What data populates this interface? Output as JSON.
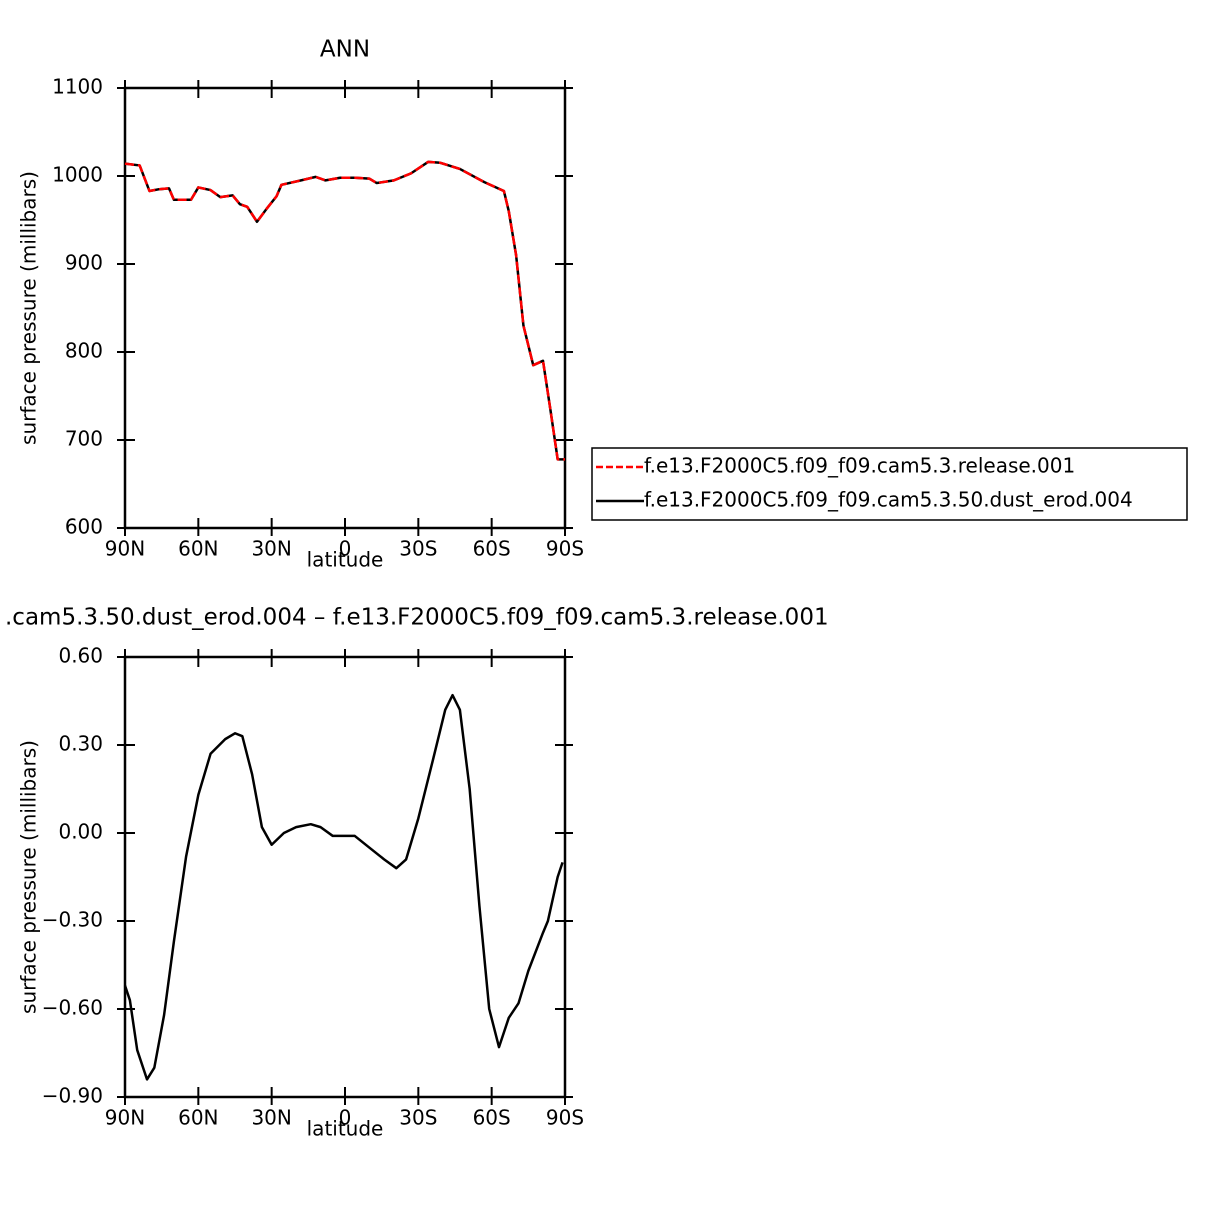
{
  "chart_data": [
    {
      "type": "line",
      "title": "ANN",
      "xlabel": "latitude",
      "ylabel": "surface pressure (millibars)",
      "xlim": [
        90,
        -90
      ],
      "ylim": [
        600,
        1100
      ],
      "xticks": [
        {
          "value": 90,
          "label": "90N"
        },
        {
          "value": 60,
          "label": "60N"
        },
        {
          "value": 30,
          "label": "30N"
        },
        0,
        {
          "value": -30,
          "label": "30S"
        },
        {
          "value": -60,
          "label": "60S"
        },
        {
          "value": -90,
          "label": "90S"
        }
      ],
      "yticks": [
        600,
        700,
        800,
        900,
        1000,
        1100
      ],
      "x": [
        90,
        84,
        80,
        76,
        72,
        70,
        63,
        60,
        55,
        51,
        46,
        43,
        40,
        36,
        32,
        28,
        26,
        18,
        12,
        8,
        2,
        -4,
        -10,
        -13,
        -20,
        -27,
        -34,
        -39,
        -47,
        -57,
        -65,
        -67,
        -70,
        -73,
        -77,
        -81,
        -84,
        -87,
        -90
      ],
      "series": [
        {
          "name": "f.e13.F2000C5.f09_f09.cam5.3.release.001",
          "color": "#ff0000",
          "dash": true,
          "values": [
            1014,
            1012,
            983,
            985,
            986,
            973,
            973,
            987,
            984,
            976,
            978,
            968,
            965,
            948,
            963,
            977,
            990,
            995,
            999,
            995,
            998,
            998,
            997,
            992,
            995,
            1003,
            1016,
            1015,
            1008,
            993,
            983,
            960,
            910,
            830,
            785,
            790,
            735,
            678,
            678
          ]
        },
        {
          "name": "f.e13.F2000C5.f09_f09.cam5.3.50.dust_erod.004",
          "color": "#000000",
          "dash": false,
          "values": [
            1014,
            1012,
            983,
            985,
            986,
            973,
            973,
            987,
            984,
            976,
            978,
            968,
            965,
            948,
            963,
            977,
            990,
            995,
            999,
            995,
            998,
            998,
            997,
            992,
            995,
            1003,
            1016,
            1015,
            1008,
            993,
            983,
            960,
            910,
            830,
            785,
            790,
            735,
            678,
            678
          ]
        }
      ]
    },
    {
      "type": "line",
      "title": ".cam5.3.50.dust_erod.004 – f.e13.F2000C5.f09_f09.cam5.3.release.001",
      "xlabel": "latitude",
      "ylabel": "surface pressure (millibars)",
      "xlim": [
        90,
        -90
      ],
      "ylim": [
        -0.9,
        0.6
      ],
      "xticks": [
        {
          "value": 90,
          "label": "90N"
        },
        {
          "value": 60,
          "label": "60N"
        },
        {
          "value": 30,
          "label": "30N"
        },
        0,
        {
          "value": -30,
          "label": "30S"
        },
        {
          "value": -60,
          "label": "60S"
        },
        {
          "value": -90,
          "label": "90S"
        }
      ],
      "yticks": [
        {
          "value": -0.9,
          "label": "−0.90"
        },
        {
          "value": -0.6,
          "label": "−0.60"
        },
        {
          "value": -0.3,
          "label": "−0.30"
        },
        {
          "value": 0,
          "label": "0.00"
        },
        {
          "value": 0.3,
          "label": "0.30"
        },
        {
          "value": 0.6,
          "label": "0.60"
        }
      ],
      "x": [
        90,
        88,
        85,
        81,
        78,
        74,
        70,
        65,
        60,
        55,
        49,
        45,
        42,
        38,
        34,
        30,
        25,
        20,
        14,
        10,
        5,
        0,
        -4,
        -10,
        -16,
        -21,
        -25,
        -30,
        -36,
        -41,
        -44,
        -47,
        -51,
        -55,
        -59,
        -63,
        -67,
        -71,
        -75,
        -81,
        -83,
        -87,
        -89
      ],
      "series": [
        {
          "color": "#000000",
          "dash": false,
          "values": [
            -0.52,
            -0.57,
            -0.74,
            -0.84,
            -0.8,
            -0.62,
            -0.37,
            -0.08,
            0.13,
            0.27,
            0.32,
            0.34,
            0.33,
            0.2,
            0.02,
            -0.04,
            0.0,
            0.02,
            0.03,
            0.02,
            -0.01,
            -0.01,
            -0.01,
            -0.05,
            -0.09,
            -0.12,
            -0.09,
            0.05,
            0.25,
            0.42,
            0.47,
            0.42,
            0.15,
            -0.25,
            -0.6,
            -0.73,
            -0.63,
            -0.58,
            -0.47,
            -0.34,
            -0.3,
            -0.15,
            -0.1
          ]
        }
      ]
    }
  ]
}
